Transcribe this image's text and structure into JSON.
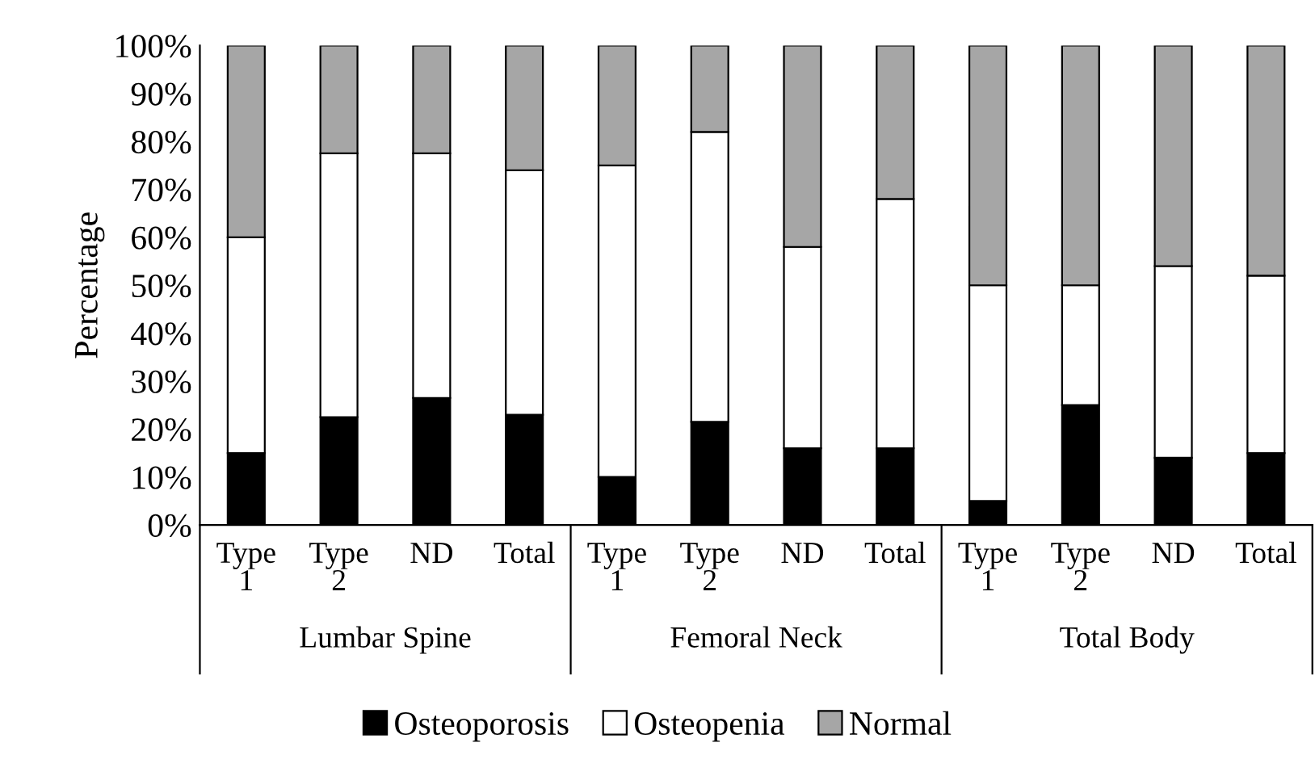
{
  "chart_data": {
    "type": "bar",
    "stacked": true,
    "ylabel": "Percentage",
    "categories": [
      "Type\n1",
      "Type\n2",
      "ND",
      "Total",
      "Type\n1",
      "Type\n2",
      "ND",
      "Total",
      "Type\n1",
      "Type\n2",
      "ND",
      "Total"
    ],
    "annotations": [
      "Lumbar Spine",
      "Femoral Neck",
      "Total Body"
    ],
    "series": [
      {
        "name": "Osteoporosis",
        "color": "#000000",
        "values": [
          15,
          22.5,
          26.5,
          23,
          10,
          21.5,
          16,
          16,
          5,
          25,
          14,
          15
        ]
      },
      {
        "name": "Osteopenia",
        "color": "#ffffff",
        "values": [
          45,
          55,
          51,
          51,
          65,
          60.5,
          42,
          52,
          45,
          25,
          40,
          37
        ]
      },
      {
        "name": "Normal",
        "color": "#a6a6a6",
        "values": [
          40,
          22.5,
          22.5,
          26,
          25,
          18,
          42,
          32,
          50,
          50,
          46,
          48
        ]
      }
    ],
    "ylim": [
      0,
      100
    ],
    "yticks": [
      {
        "value": 0,
        "label": "0%"
      },
      {
        "value": 10,
        "label": "10%"
      },
      {
        "value": 20,
        "label": "20%"
      },
      {
        "value": 30,
        "label": "30%"
      },
      {
        "value": 40,
        "label": "40%"
      },
      {
        "value": 50,
        "label": "50%"
      },
      {
        "value": 60,
        "label": "60%"
      },
      {
        "value": 70,
        "label": "70%"
      },
      {
        "value": 80,
        "label": "80%"
      },
      {
        "value": 90,
        "label": "90%"
      },
      {
        "value": 100,
        "label": "100%"
      }
    ],
    "grid": false,
    "legend": "bottom"
  }
}
